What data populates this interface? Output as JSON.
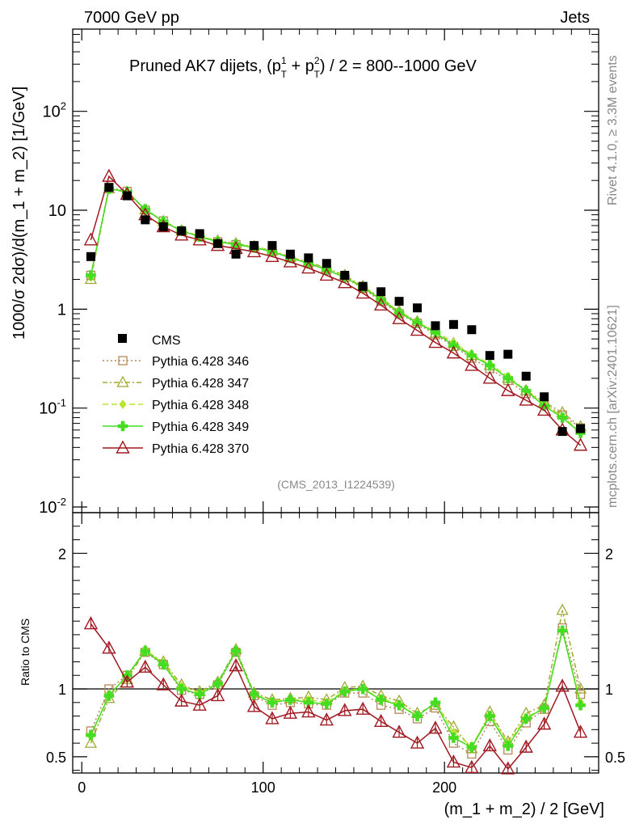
{
  "header": {
    "left": "7000 GeV pp",
    "right": "Jets"
  },
  "side_labels": {
    "top": "Rivet 4.1.0, ≥ 3.3M events",
    "bottom": "mcplots.cern.ch [arXiv:2401.10621]"
  },
  "watermark": "(CMS_2013_I1224539)",
  "chart_data": {
    "type": "scatter",
    "title": "Pruned AK7 dijets, (p_T^1 + p_T^2) / 2 = 800--1000 GeV",
    "title_parts": {
      "pre": "Pruned AK7 dijets, (p",
      "sup1": "1",
      "sub": "T",
      "mid": " + p",
      "sup2": "2",
      "post": ") / 2 = 800--1000 GeV"
    },
    "xlabel": "(m_1 + m_2) / 2 [GeV]",
    "ylabel": "1000/σ   2dσ)/d(m_1 + m_2) [1/GeV]",
    "ylabel_ratio": "Ratio to CMS",
    "xlim": [
      -5,
      285
    ],
    "ylim_log": [
      0.01,
      600
    ],
    "ratio_ylim": [
      0.38,
      2.3
    ],
    "x_ticks": [
      "0",
      "100",
      "200"
    ],
    "y_ticks_main": [
      "10^-2",
      "10^-1",
      "1",
      "10",
      "10^2"
    ],
    "y_ticks_ratio": [
      "0.5",
      "1",
      "2"
    ],
    "x": [
      5,
      15,
      25,
      35,
      45,
      55,
      65,
      75,
      85,
      95,
      105,
      115,
      125,
      135,
      145,
      155,
      165,
      175,
      185,
      195,
      205,
      215,
      225,
      235,
      245,
      255,
      265,
      275
    ],
    "data": {
      "name": "CMS",
      "values": [
        3.4,
        17.0,
        14.0,
        8.0,
        6.8,
        6.2,
        5.8,
        4.6,
        3.6,
        4.4,
        4.4,
        3.6,
        3.3,
        2.9,
        2.2,
        1.7,
        1.5,
        1.2,
        1.03,
        0.68,
        0.7,
        0.62,
        0.34,
        0.35,
        0.21,
        0.13,
        0.058,
        0.062
      ]
    },
    "series": [
      {
        "name": "Pythia 6.428 346",
        "color": "#b5875a",
        "values": [
          2.2,
          17.0,
          15.5,
          10.0,
          7.8,
          6.1,
          5.5,
          4.8,
          4.5,
          4.2,
          3.85,
          3.3,
          2.9,
          2.5,
          2.1,
          1.62,
          1.2,
          0.9,
          0.72,
          0.55,
          0.42,
          0.32,
          0.25,
          0.19,
          0.14,
          0.11,
          0.085,
          0.063
        ],
        "ratio": [
          0.69,
          1.0,
          1.1,
          1.27,
          1.18,
          0.99,
          0.96,
          1.03,
          1.27,
          0.95,
          0.88,
          0.9,
          0.89,
          0.88,
          0.97,
          0.97,
          0.88,
          0.85,
          0.78,
          0.86,
          0.6,
          0.52,
          0.76,
          0.55,
          0.75,
          0.85,
          1.45,
          0.96
        ]
      },
      {
        "name": "Pythia 6.428 347",
        "color": "#a0a832",
        "values": [
          2.0,
          16.5,
          15.2,
          10.1,
          7.7,
          6.2,
          5.4,
          4.9,
          4.6,
          4.3,
          3.9,
          3.35,
          3.0,
          2.6,
          2.2,
          1.7,
          1.3,
          0.95,
          0.75,
          0.57,
          0.45,
          0.34,
          0.27,
          0.2,
          0.15,
          0.115,
          0.09,
          0.065
        ],
        "ratio": [
          0.6,
          0.93,
          1.07,
          1.28,
          1.2,
          1.03,
          0.98,
          1.05,
          1.29,
          0.97,
          0.92,
          0.93,
          0.94,
          0.92,
          1.01,
          1.02,
          0.95,
          0.91,
          0.82,
          0.88,
          0.72,
          0.56,
          0.83,
          0.61,
          0.82,
          0.88,
          1.58,
          1.0
        ]
      },
      {
        "name": "Pythia 6.428 348",
        "color": "#b8e632",
        "values": [
          2.1,
          16.8,
          15.3,
          10.2,
          7.8,
          6.3,
          5.5,
          4.9,
          4.5,
          4.3,
          3.85,
          3.3,
          2.95,
          2.55,
          2.15,
          1.68,
          1.28,
          0.94,
          0.74,
          0.6,
          0.46,
          0.35,
          0.28,
          0.21,
          0.15,
          0.11,
          0.082,
          0.058
        ],
        "ratio": [
          0.65,
          0.96,
          1.09,
          1.29,
          1.19,
          1.02,
          0.97,
          1.04,
          1.28,
          0.96,
          0.91,
          0.92,
          0.92,
          0.9,
          0.99,
          1.0,
          0.93,
          0.89,
          0.8,
          0.9,
          0.68,
          0.58,
          0.81,
          0.6,
          0.79,
          0.86,
          1.43,
          0.9
        ]
      },
      {
        "name": "Pythia 6.428 349",
        "color": "#44dd22",
        "values": [
          2.2,
          16.5,
          15.4,
          10.2,
          7.7,
          6.2,
          5.4,
          4.8,
          4.5,
          4.2,
          3.8,
          3.3,
          2.9,
          2.5,
          2.1,
          1.65,
          1.25,
          0.92,
          0.73,
          0.58,
          0.43,
          0.34,
          0.27,
          0.2,
          0.15,
          0.105,
          0.08,
          0.056
        ],
        "ratio": [
          0.66,
          0.95,
          1.1,
          1.28,
          1.18,
          1.0,
          0.96,
          1.04,
          1.28,
          0.96,
          0.9,
          0.92,
          0.9,
          0.89,
          0.98,
          1.0,
          0.92,
          0.88,
          0.8,
          0.9,
          0.64,
          0.57,
          0.8,
          0.58,
          0.78,
          0.86,
          1.43,
          0.88
        ]
      },
      {
        "name": "Pythia 6.428 370",
        "color": "#a01820",
        "values": [
          5.0,
          22.0,
          14.5,
          9.0,
          6.8,
          5.6,
          5.0,
          4.4,
          4.1,
          3.8,
          3.4,
          3.0,
          2.6,
          2.2,
          1.85,
          1.45,
          1.1,
          0.8,
          0.61,
          0.46,
          0.36,
          0.27,
          0.2,
          0.15,
          0.12,
          0.095,
          0.06,
          0.042
        ],
        "ratio": [
          1.48,
          1.3,
          1.05,
          1.16,
          1.03,
          0.91,
          0.88,
          0.95,
          1.17,
          0.87,
          0.78,
          0.82,
          0.83,
          0.77,
          0.84,
          0.85,
          0.76,
          0.68,
          0.6,
          0.71,
          0.46,
          0.42,
          0.58,
          0.41,
          0.57,
          0.74,
          1.02,
          0.68
        ]
      }
    ]
  }
}
